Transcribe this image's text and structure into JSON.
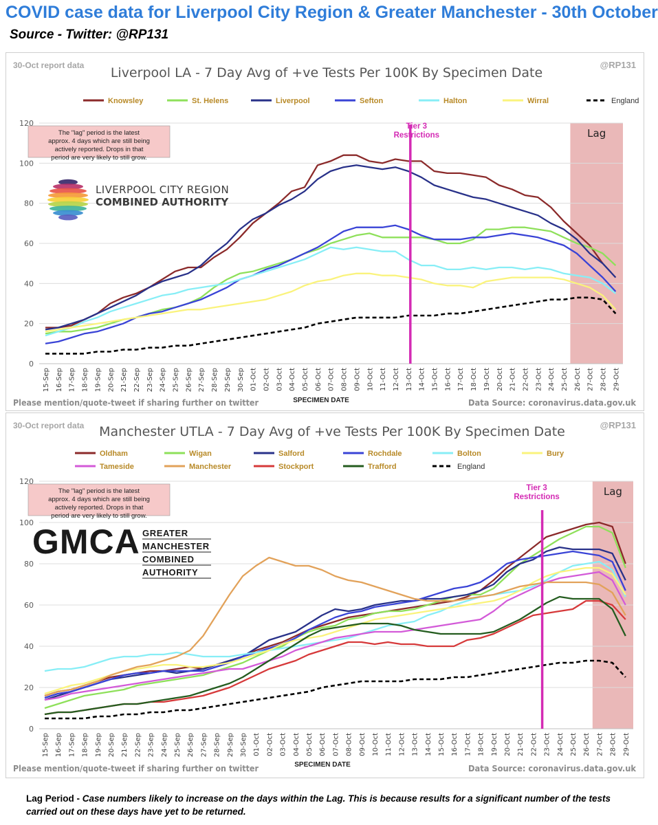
{
  "page": {
    "title": "COVID case data for Liverpool City Region & Greater Manchester - 30th October",
    "subtitle": "Source - Twitter: @RP131",
    "footer_term": "Lag Period - ",
    "footer_desc": "Case numbers likely to increase on the days within the Lag. This is because results for a significant number of the tests carried out on these days have yet to be returned."
  },
  "chart_data": [
    {
      "type": "line",
      "title": "Liverpool LA - 7 Day Avg of +ve Tests Per 100K By Specimen Date",
      "report_label": "30-Oct report data",
      "credit": "@RP131",
      "xlabel": "SPECIMEN DATE",
      "ylabel": "",
      "ylim": [
        0,
        120
      ],
      "yticks": [
        0,
        20,
        40,
        60,
        80,
        100,
        120
      ],
      "grid": true,
      "legend_position": "top",
      "footer_left": "Please mention/quote-tweet if sharing further on twitter",
      "footer_right": "Data Source: coronavirus.data.gov.uk",
      "lag_label": "Lag",
      "lag_range": [
        "25-Oct",
        "29-Oct"
      ],
      "event_label": "Tier 3 Restrictions",
      "event_x": "13-Oct",
      "note": "The \"lag\" period is the latest approx. 4 days which are still being actively reported. Drops in that period are very likely to still grow.",
      "logo_line1": "LIVERPOOL CITY REGION",
      "logo_line2": "COMBINED AUTHORITY",
      "categories": [
        "15-Sep",
        "16-Sep",
        "17-Sep",
        "18-Sep",
        "19-Sep",
        "20-Sep",
        "21-Sep",
        "22-Sep",
        "23-Sep",
        "24-Sep",
        "25-Sep",
        "26-Sep",
        "27-Sep",
        "28-Sep",
        "29-Sep",
        "30-Sep",
        "01-Oct",
        "02-Oct",
        "03-Oct",
        "04-Oct",
        "05-Oct",
        "06-Oct",
        "07-Oct",
        "08-Oct",
        "09-Oct",
        "10-Oct",
        "11-Oct",
        "12-Oct",
        "13-Oct",
        "14-Oct",
        "15-Oct",
        "16-Oct",
        "17-Oct",
        "18-Oct",
        "19-Oct",
        "20-Oct",
        "21-Oct",
        "22-Oct",
        "23-Oct",
        "24-Oct",
        "25-Oct",
        "26-Oct",
        "27-Oct",
        "28-Oct",
        "29-Oct"
      ],
      "series": [
        {
          "name": "Knowsley",
          "color": "#8b2a2a",
          "dashed": false,
          "values": [
            18,
            18,
            19,
            22,
            25,
            30,
            33,
            35,
            38,
            42,
            46,
            48,
            48,
            53,
            57,
            63,
            70,
            75,
            80,
            86,
            88,
            99,
            101,
            104,
            104,
            101,
            100,
            102,
            101,
            101,
            96,
            95,
            95,
            94,
            93,
            89,
            87,
            84,
            83,
            78,
            71,
            65,
            59,
            50,
            null
          ]
        },
        {
          "name": "St. Helens",
          "color": "#8ee05a",
          "dashed": false,
          "values": [
            15,
            16,
            16,
            17,
            18,
            20,
            22,
            23,
            25,
            27,
            28,
            30,
            33,
            38,
            42,
            45,
            46,
            48,
            50,
            52,
            55,
            57,
            60,
            62,
            64,
            65,
            63,
            63,
            63,
            63,
            62,
            60,
            60,
            62,
            67,
            67,
            68,
            68,
            67,
            66,
            63,
            60,
            58,
            55,
            49
          ]
        },
        {
          "name": "Liverpool",
          "color": "#283189",
          "dashed": false,
          "values": [
            17,
            18,
            20,
            22,
            25,
            28,
            31,
            34,
            38,
            41,
            43,
            45,
            49,
            55,
            60,
            67,
            72,
            75,
            79,
            82,
            86,
            92,
            96,
            98,
            99,
            98,
            97,
            98,
            96,
            93,
            89,
            87,
            85,
            83,
            82,
            80,
            78,
            76,
            74,
            70,
            67,
            62,
            55,
            50,
            43
          ]
        },
        {
          "name": "Sefton",
          "color": "#3943d6",
          "dashed": false,
          "values": [
            10,
            11,
            13,
            15,
            16,
            18,
            20,
            23,
            25,
            26,
            28,
            30,
            32,
            35,
            38,
            42,
            44,
            47,
            49,
            52,
            55,
            58,
            62,
            66,
            68,
            68,
            68,
            69,
            67,
            64,
            62,
            62,
            62,
            63,
            63,
            64,
            65,
            64,
            63,
            61,
            59,
            55,
            49,
            43,
            36
          ]
        },
        {
          "name": "Halton",
          "color": "#87eef6",
          "dashed": false,
          "values": [
            14,
            16,
            18,
            21,
            23,
            26,
            28,
            30,
            32,
            34,
            35,
            37,
            38,
            39,
            40,
            42,
            44,
            46,
            48,
            50,
            52,
            55,
            58,
            57,
            58,
            57,
            56,
            56,
            52,
            49,
            49,
            47,
            47,
            48,
            47,
            48,
            48,
            47,
            48,
            47,
            45,
            44,
            43,
            40,
            35
          ]
        },
        {
          "name": "Wirral",
          "color": "#faf37c",
          "dashed": false,
          "values": [
            16,
            17,
            18,
            19,
            20,
            21,
            22,
            23,
            24,
            25,
            26,
            27,
            27,
            28,
            29,
            30,
            31,
            32,
            34,
            36,
            39,
            41,
            42,
            44,
            45,
            45,
            44,
            44,
            43,
            42,
            40,
            39,
            39,
            38,
            41,
            42,
            43,
            43,
            43,
            43,
            42,
            40,
            38,
            34,
            27
          ]
        },
        {
          "name": "England",
          "color": "#000000",
          "dashed": true,
          "values": [
            5,
            5,
            5,
            5,
            6,
            6,
            7,
            7,
            8,
            8,
            9,
            9,
            10,
            11,
            12,
            13,
            14,
            15,
            16,
            17,
            18,
            20,
            21,
            22,
            23,
            23,
            23,
            23,
            24,
            24,
            24,
            25,
            25,
            26,
            27,
            28,
            29,
            30,
            31,
            32,
            32,
            33,
            33,
            32,
            25
          ]
        }
      ]
    },
    {
      "type": "line",
      "title": "Manchester UTLA - 7 Day Avg of +ve Tests Per 100K By Specimen Date",
      "report_label": "30-Oct report data",
      "credit": "@RP131",
      "xlabel": "SPECIMEN DATE",
      "ylabel": "",
      "ylim": [
        0,
        120
      ],
      "yticks": [
        0,
        20,
        40,
        60,
        80,
        100,
        120
      ],
      "grid": true,
      "legend_position": "top",
      "footer_left": "Please mention/quote-tweet if sharing further on twitter",
      "footer_right": "Data Source: coronavirus.data.gov.uk",
      "lag_label": "Lag",
      "lag_range": [
        "26-Oct",
        "29-Oct"
      ],
      "event_label": "Tier 3 Restrictions",
      "event_x": "23-Oct",
      "note": "The \"lag\" period is the latest approx. 4 days which are still being actively reported. Drops in that period are very likely to still grow.",
      "logo_main": "GMCA",
      "logo_lines": [
        "GREATER",
        "MANCHESTER",
        "COMBINED",
        "AUTHORITY"
      ],
      "categories": [
        "15-Sep",
        "16-Sep",
        "17-Sep",
        "18-Sep",
        "19-Sep",
        "20-Sep",
        "21-Sep",
        "22-Sep",
        "23-Sep",
        "24-Sep",
        "25-Sep",
        "26-Sep",
        "27-Sep",
        "28-Sep",
        "29-Sep",
        "30-Sep",
        "01-Oct",
        "02-Oct",
        "03-Oct",
        "04-Oct",
        "05-Oct",
        "06-Oct",
        "07-Oct",
        "08-Oct",
        "09-Oct",
        "10-Oct",
        "11-Oct",
        "12-Oct",
        "13-Oct",
        "14-Oct",
        "15-Oct",
        "16-Oct",
        "17-Oct",
        "18-Oct",
        "19-Oct",
        "20-Oct",
        "21-Oct",
        "22-Oct",
        "23-Oct",
        "24-Oct",
        "25-Oct",
        "26-Oct",
        "27-Oct",
        "28-Oct",
        "29-Oct"
      ],
      "series": [
        {
          "name": "Oldham",
          "color": "#8b2a2a",
          "dashed": false,
          "values": [
            16,
            18,
            19,
            21,
            23,
            25,
            26,
            27,
            28,
            28,
            29,
            30,
            29,
            31,
            33,
            35,
            38,
            40,
            42,
            45,
            48,
            50,
            52,
            54,
            55,
            56,
            57,
            58,
            59,
            60,
            61,
            62,
            64,
            67,
            72,
            78,
            83,
            88,
            93,
            95,
            97,
            99,
            100,
            98,
            80
          ]
        },
        {
          "name": "Wigan",
          "color": "#8ee05a",
          "dashed": false,
          "values": [
            10,
            12,
            14,
            16,
            17,
            18,
            19,
            21,
            22,
            23,
            24,
            25,
            26,
            28,
            30,
            32,
            35,
            38,
            40,
            44,
            47,
            49,
            50,
            53,
            54,
            56,
            57,
            57,
            58,
            60,
            62,
            64,
            65,
            65,
            68,
            74,
            80,
            84,
            88,
            92,
            95,
            98,
            98,
            95,
            78
          ]
        },
        {
          "name": "Salford",
          "color": "#283189",
          "dashed": false,
          "values": [
            14,
            16,
            18,
            20,
            22,
            24,
            25,
            26,
            27,
            28,
            27,
            28,
            29,
            31,
            33,
            35,
            39,
            43,
            45,
            47,
            51,
            55,
            58,
            57,
            58,
            60,
            61,
            62,
            62,
            63,
            63,
            64,
            65,
            67,
            70,
            76,
            80,
            82,
            86,
            88,
            87,
            87,
            87,
            85,
            72
          ]
        },
        {
          "name": "Rochdale",
          "color": "#3943d6",
          "dashed": false,
          "values": [
            15,
            17,
            18,
            20,
            22,
            24,
            26,
            27,
            27,
            28,
            28,
            28,
            28,
            30,
            32,
            35,
            37,
            39,
            41,
            44,
            48,
            51,
            54,
            56,
            57,
            59,
            60,
            61,
            62,
            64,
            66,
            68,
            69,
            71,
            75,
            80,
            82,
            83,
            84,
            85,
            86,
            85,
            84,
            81,
            67
          ]
        },
        {
          "name": "Bolton",
          "color": "#87eef6",
          "dashed": false,
          "values": [
            28,
            29,
            29,
            30,
            32,
            34,
            35,
            35,
            36,
            36,
            37,
            36,
            35,
            35,
            35,
            36,
            37,
            38,
            39,
            40,
            41,
            42,
            43,
            44,
            46,
            48,
            50,
            51,
            52,
            55,
            57,
            60,
            62,
            64,
            65,
            66,
            67,
            69,
            72,
            76,
            79,
            80,
            81,
            77,
            64
          ]
        },
        {
          "name": "Bury",
          "color": "#faf37c",
          "dashed": false,
          "values": [
            17,
            19,
            21,
            22,
            24,
            26,
            28,
            29,
            30,
            31,
            31,
            30,
            30,
            31,
            32,
            34,
            36,
            38,
            41,
            43,
            44,
            45,
            47,
            49,
            51,
            53,
            54,
            55,
            56,
            57,
            58,
            59,
            60,
            61,
            62,
            64,
            67,
            71,
            74,
            76,
            77,
            78,
            78,
            75,
            65
          ]
        },
        {
          "name": "Tameside",
          "color": "#d35ad8",
          "dashed": false,
          "values": [
            14,
            15,
            17,
            18,
            19,
            20,
            21,
            22,
            23,
            24,
            25,
            26,
            27,
            28,
            29,
            29,
            31,
            33,
            35,
            38,
            40,
            42,
            44,
            45,
            46,
            47,
            47,
            47,
            48,
            49,
            50,
            51,
            52,
            53,
            57,
            62,
            65,
            68,
            71,
            73,
            74,
            75,
            76,
            72,
            60
          ]
        },
        {
          "name": "Manchester",
          "color": "#e2a25a",
          "dashed": false,
          "values": [
            16,
            18,
            19,
            21,
            23,
            26,
            28,
            30,
            31,
            33,
            35,
            38,
            45,
            55,
            65,
            74,
            79,
            83,
            81,
            79,
            79,
            77,
            74,
            72,
            71,
            69,
            67,
            65,
            63,
            62,
            62,
            62,
            63,
            64,
            65,
            67,
            69,
            70,
            71,
            71,
            71,
            71,
            70,
            66,
            55
          ]
        },
        {
          "name": "Stockport",
          "color": "#d6393a",
          "dashed": false,
          "values": [
            7,
            8,
            8,
            9,
            10,
            11,
            12,
            12,
            13,
            13,
            14,
            15,
            16,
            18,
            20,
            23,
            26,
            29,
            31,
            33,
            36,
            38,
            40,
            42,
            42,
            41,
            42,
            41,
            41,
            40,
            40,
            40,
            43,
            44,
            46,
            49,
            52,
            55,
            56,
            57,
            58,
            62,
            62,
            60,
            53
          ]
        },
        {
          "name": "Trafford",
          "color": "#245c1f",
          "dashed": false,
          "values": [
            7,
            8,
            8,
            9,
            10,
            11,
            12,
            12,
            13,
            14,
            15,
            16,
            18,
            20,
            22,
            25,
            29,
            33,
            37,
            41,
            45,
            48,
            49,
            50,
            51,
            51,
            51,
            50,
            48,
            47,
            46,
            46,
            46,
            46,
            47,
            50,
            53,
            57,
            61,
            64,
            63,
            63,
            63,
            58,
            45
          ]
        },
        {
          "name": "England",
          "color": "#000000",
          "dashed": true,
          "values": [
            5,
            5,
            5,
            5,
            6,
            6,
            7,
            7,
            8,
            8,
            9,
            9,
            10,
            11,
            12,
            13,
            14,
            15,
            16,
            17,
            18,
            20,
            21,
            22,
            23,
            23,
            23,
            23,
            24,
            24,
            24,
            25,
            25,
            26,
            27,
            28,
            29,
            30,
            31,
            32,
            32,
            33,
            33,
            32,
            25
          ]
        }
      ]
    }
  ]
}
